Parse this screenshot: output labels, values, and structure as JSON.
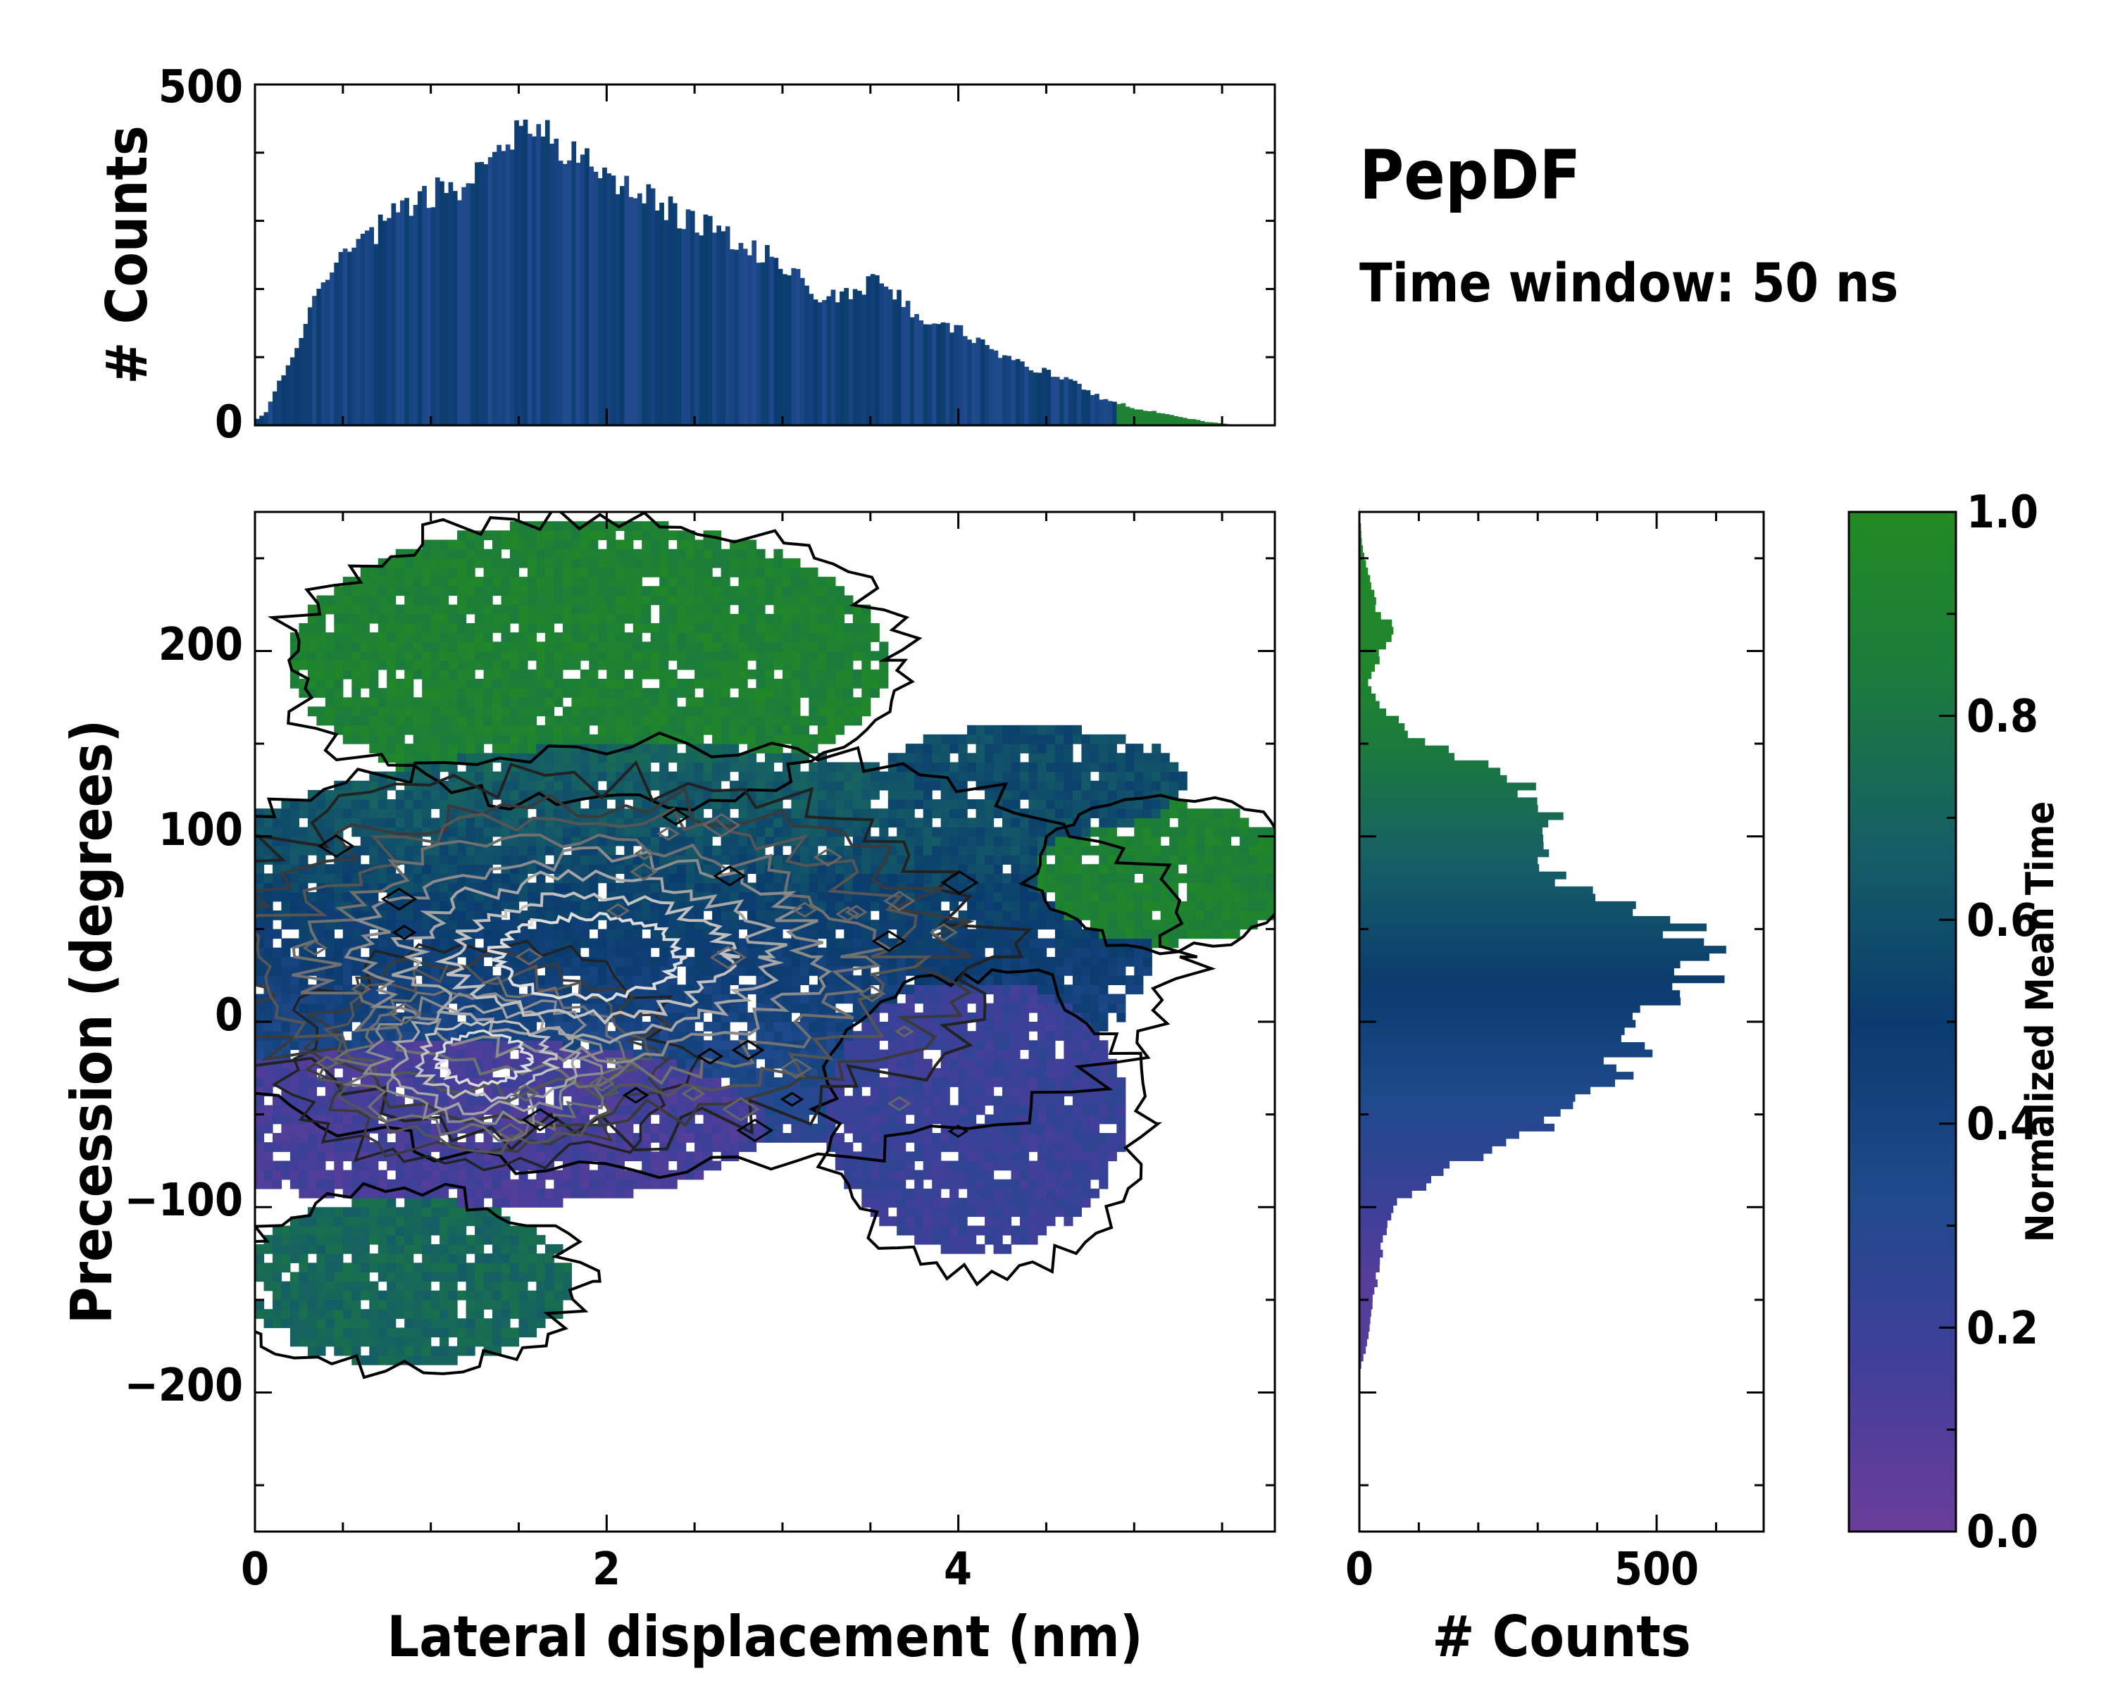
{
  "chart_data": {
    "type": "heatmap",
    "title": "PepDF",
    "subtitle": "Time window: 50 ns",
    "main": {
      "xlabel": "Lateral displacement (nm)",
      "ylabel": "Precession (degrees)",
      "xlim": [
        0,
        5.8
      ],
      "ylim": [
        -275,
        275
      ],
      "xticks": [
        0,
        2,
        4
      ],
      "xtick_labels": [
        "0",
        "2",
        "4"
      ],
      "yticks": [
        -200,
        -100,
        0,
        100,
        200
      ],
      "ytick_labels": [
        "−200",
        "−100",
        "0",
        "100",
        "200"
      ],
      "regions": [
        {
          "name": "upper-green",
          "mean_time": 0.92,
          "x_range": [
            0.3,
            3.7
          ],
          "y_range": [
            110,
            272
          ]
        },
        {
          "name": "central-blue",
          "mean_time": 0.5,
          "x_range": [
            0,
            5.3
          ],
          "y_range": [
            -100,
            150
          ]
        },
        {
          "name": "lower-purple",
          "mean_time": 0.15,
          "x_range": [
            0,
            3.0
          ],
          "y_range": [
            -100,
            -20
          ]
        },
        {
          "name": "right-purple",
          "mean_time": 0.2,
          "x_range": [
            3.3,
            5.1
          ],
          "y_range": [
            -140,
            20
          ]
        },
        {
          "name": "right-green",
          "mean_time": 0.9,
          "x_range": [
            4.5,
            5.8
          ],
          "y_range": [
            40,
            110
          ]
        },
        {
          "name": "bottom-left-teal",
          "mean_time": 0.72,
          "x_range": [
            0,
            1.8
          ],
          "y_range": [
            -185,
            -100
          ]
        }
      ]
    },
    "top_histogram": {
      "ylabel": "# Counts",
      "ylim": [
        0,
        500
      ],
      "yticks": [
        0,
        500
      ],
      "ytick_labels": [
        "0",
        "500"
      ],
      "bin_width": 0.025,
      "profile_x": [
        0,
        0.05,
        0.1,
        0.2,
        0.3,
        0.4,
        0.5,
        0.6,
        0.7,
        0.8,
        0.9,
        1.0,
        1.1,
        1.2,
        1.3,
        1.4,
        1.5,
        1.6,
        1.8,
        2.0,
        2.2,
        2.4,
        2.6,
        2.8,
        3.0,
        3.2,
        3.4,
        3.5,
        3.6,
        3.8,
        4.0,
        4.2,
        4.4,
        4.6,
        4.8,
        5.0,
        5.2,
        5.4,
        5.6,
        5.8
      ],
      "profile_counts": [
        10,
        20,
        50,
        100,
        170,
        220,
        250,
        270,
        290,
        310,
        330,
        340,
        345,
        360,
        380,
        400,
        440,
        425,
        400,
        370,
        340,
        310,
        290,
        265,
        230,
        190,
        195,
        210,
        200,
        150,
        140,
        105,
        85,
        70,
        40,
        25,
        15,
        5,
        0,
        0
      ]
    },
    "right_histogram": {
      "xlabel": "# Counts",
      "xlim": [
        0,
        680
      ],
      "xticks": [
        0,
        500
      ],
      "xtick_labels": [
        "0",
        "500"
      ],
      "bin_width": 4,
      "profile_y": [
        -275,
        -190,
        -180,
        -160,
        -140,
        -120,
        -100,
        -80,
        -60,
        -40,
        -20,
        0,
        20,
        40,
        60,
        70,
        80,
        100,
        110,
        130,
        150,
        170,
        180,
        200,
        210,
        220,
        240,
        255,
        275
      ],
      "profile_counts": [
        0,
        0,
        10,
        20,
        30,
        40,
        60,
        160,
        300,
        400,
        450,
        480,
        560,
        580,
        480,
        380,
        330,
        330,
        340,
        250,
        100,
        30,
        15,
        40,
        60,
        30,
        15,
        5,
        0
      ]
    },
    "colorbar": {
      "label": "Normalized Mean Time",
      "range": [
        0,
        1
      ],
      "ticks": [
        0,
        0.2,
        0.4,
        0.6,
        0.8,
        1.0
      ],
      "tick_labels": [
        "0.0",
        "0.2",
        "0.4",
        "0.6",
        "0.8",
        "1.0"
      ],
      "colors": [
        "#6a3d9a",
        "#3f3f99",
        "#1f4a8c",
        "#0a3b6e",
        "#155e66",
        "#1b7a3e",
        "#228b22"
      ]
    }
  }
}
